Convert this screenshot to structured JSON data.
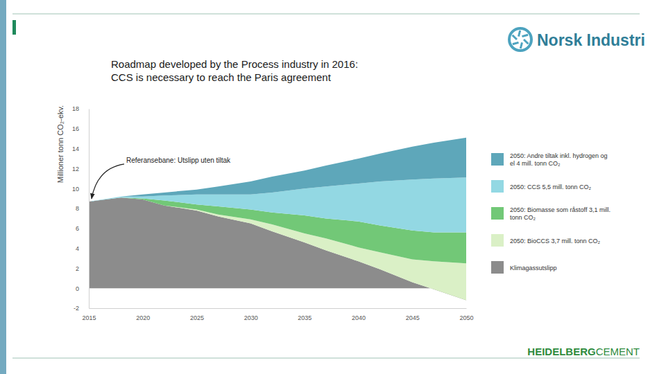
{
  "page": {
    "logo": "Norsk Industri",
    "footer_logo": [
      "HEIDELBERG",
      "CEMENT"
    ]
  },
  "chart_data": {
    "type": "area",
    "stacked": true,
    "title": "Roadmap developed by the Process industry in 2016:",
    "subtitle": "CCS is necessary to reach the Paris agreement",
    "ylabel": "Millioner tonn CO₂-ekv.",
    "annotations": [
      "Referansebane: Utslipp uten tiltak"
    ],
    "x": [
      2015,
      2018,
      2020,
      2022,
      2025,
      2027,
      2030,
      2032,
      2035,
      2037,
      2040,
      2042,
      2045,
      2047,
      2050
    ],
    "xlim": [
      2015,
      2050
    ],
    "xticks": [
      2015,
      2020,
      2025,
      2030,
      2035,
      2040,
      2045,
      2050
    ],
    "ylim": [
      -2,
      18
    ],
    "yticks": [
      -2,
      0,
      2,
      4,
      6,
      8,
      10,
      12,
      14,
      16,
      18
    ],
    "grid": false,
    "legend": "right",
    "series": [
      {
        "name": "2050: Andre tiltak inkl. hydrogen og el 4 mill. tonn CO₂",
        "color": "#5ea7ba",
        "values": [
          0,
          0,
          0.2,
          0.3,
          0.5,
          0.8,
          1.3,
          1.6,
          1.8,
          2.1,
          2.5,
          2.8,
          3.3,
          3.6,
          4.0
        ]
      },
      {
        "name": "2050: CCS 5,5 mill. tonn CO₂",
        "color": "#93d8e3",
        "values": [
          0,
          0.1,
          0.2,
          0.5,
          1.0,
          1.2,
          1.5,
          2.0,
          2.7,
          3.2,
          3.8,
          4.4,
          5.1,
          5.4,
          5.5
        ]
      },
      {
        "name": "2050: Biomasse som råstoff 3,1 mill. tonn CO₂",
        "color": "#72c877",
        "values": [
          0,
          0,
          0.1,
          0.5,
          0.5,
          0.8,
          1.0,
          1.2,
          1.8,
          2.0,
          2.6,
          2.7,
          2.9,
          2.9,
          3.1
        ]
      },
      {
        "name": "2050: BioCCS 3,7 mill. tonn CO₂",
        "color": "#daf0c6",
        "values": [
          0,
          0,
          0,
          0,
          0.1,
          0.2,
          0.4,
          0.7,
          0.9,
          1.2,
          1.4,
          1.7,
          2.3,
          2.8,
          3.7
        ]
      },
      {
        "name": "Klimagassutslipp",
        "color": "#8c8c8c",
        "values": [
          8.7,
          9.1,
          8.9,
          8.3,
          7.8,
          7.2,
          6.5,
          5.7,
          4.6,
          3.8,
          2.7,
          1.9,
          0.6,
          -0.1,
          -1.2
        ]
      }
    ]
  }
}
